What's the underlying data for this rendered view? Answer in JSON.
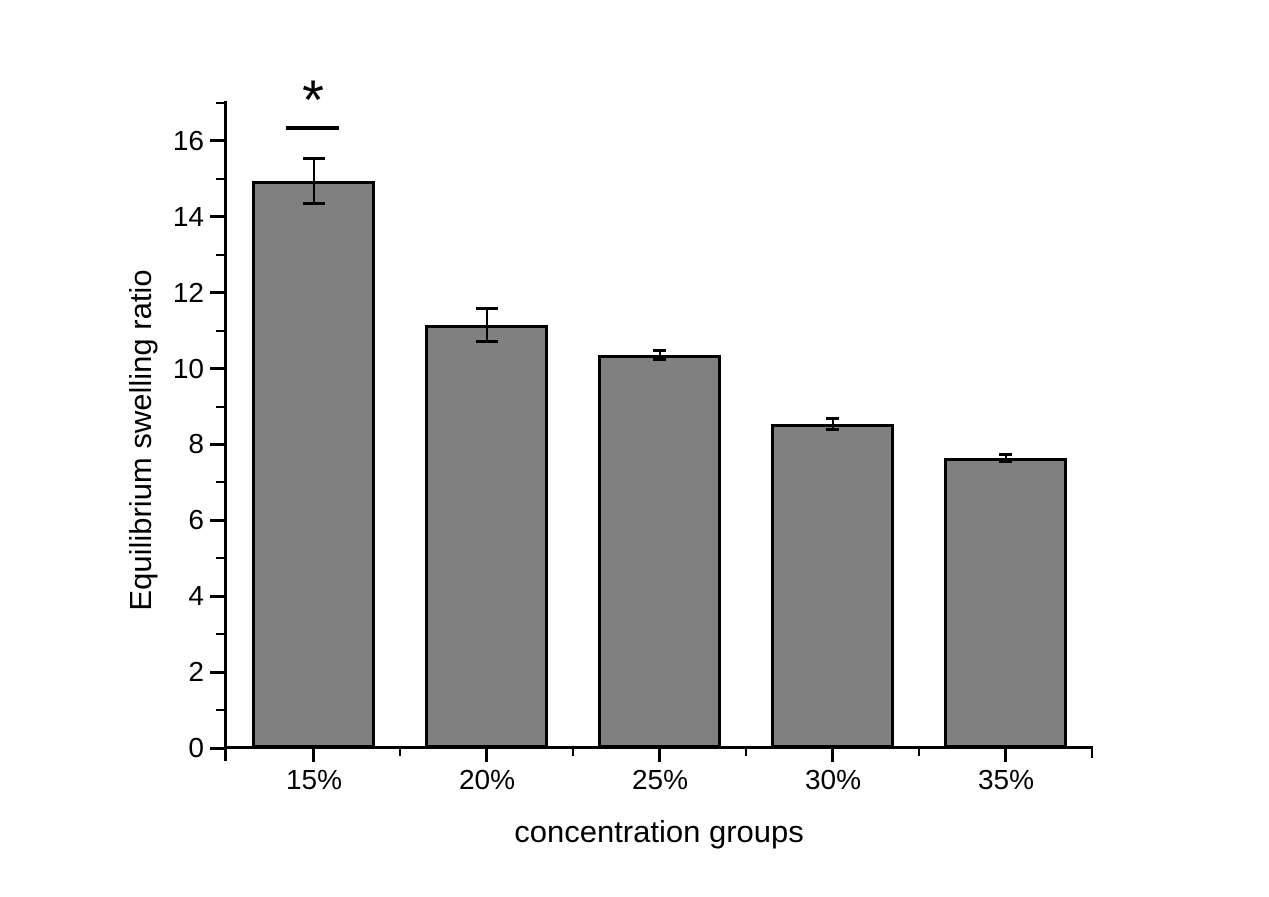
{
  "chart_data": {
    "type": "bar",
    "title": "",
    "categories": [
      "15%",
      "20%",
      "25%",
      "30%",
      "35%"
    ],
    "values": [
      14.95,
      11.15,
      10.35,
      8.55,
      7.65
    ],
    "errors": [
      0.6,
      0.45,
      0.13,
      0.16,
      0.11
    ],
    "xlabel": "concentration groups",
    "ylabel": "Equilibrium swelling ratio",
    "ylim": [
      0,
      17
    ],
    "y_major_ticks": [
      0,
      2,
      4,
      6,
      8,
      10,
      12,
      14,
      16
    ],
    "y_minor_ticks": [
      1,
      3,
      5,
      7,
      9,
      11,
      13,
      15,
      17
    ],
    "grid": false,
    "legend": "none",
    "bar_color": "#808080",
    "bar_border_color": "#000000",
    "axis_color": "#000000",
    "background_color": "#ffffff",
    "annotation": {
      "symbol": "*",
      "category": "15%",
      "line_value": 16.35,
      "meaning": "significance-marker"
    }
  }
}
